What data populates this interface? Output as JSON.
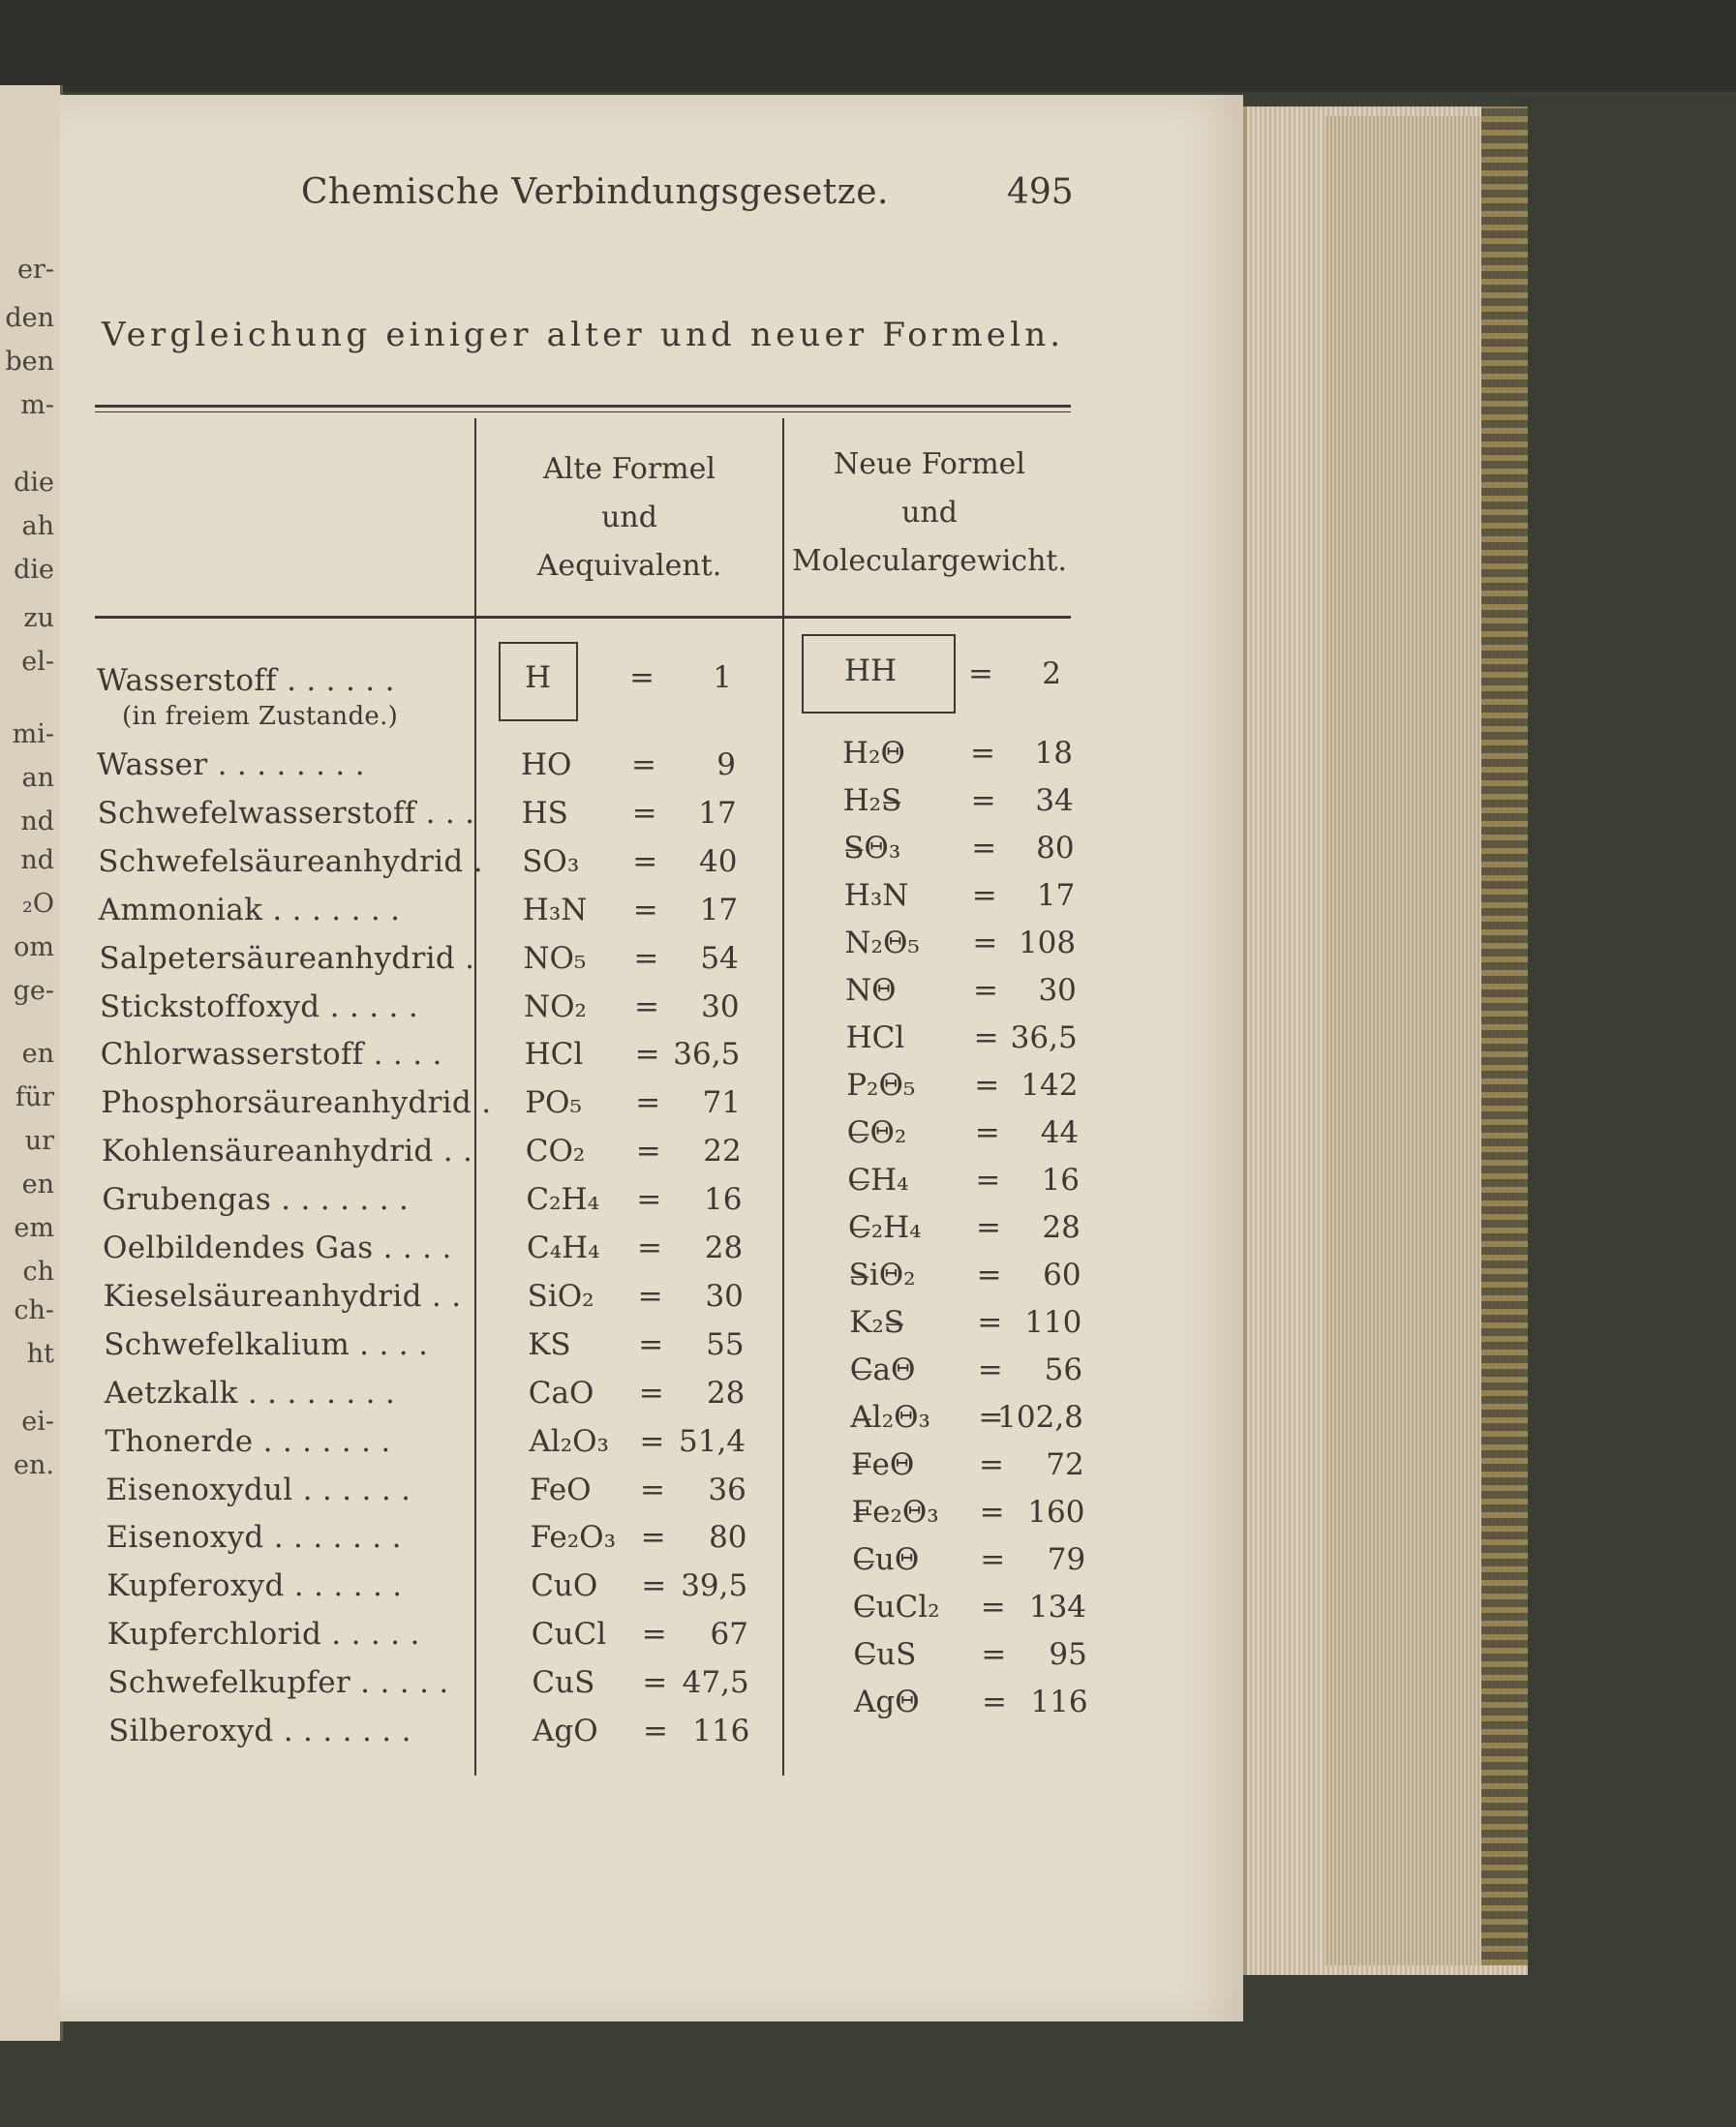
{
  "left_page_fragments": [
    "er-",
    "den",
    "ben",
    "m-",
    "die",
    "ah",
    "die",
    "zu",
    "el-",
    "mi-",
    "an",
    "nd",
    "nd",
    "₂O",
    "om",
    "ge-",
    "en",
    "für",
    "ur",
    "en",
    "em",
    "ch",
    "ch-",
    "ht",
    "ei-",
    "en."
  ],
  "running_head": "Chemische Verbindungsgesetze.",
  "page_number": "495",
  "title": "Vergleichung einiger alter und neuer Formeln.",
  "table": {
    "headers": {
      "old": [
        "Alte Formel",
        "und",
        "Aequivalent."
      ],
      "new": [
        "Neue Formel",
        "und",
        "Moleculargewicht."
      ]
    },
    "first_row": {
      "name": "Wasserstoff . . . . . .",
      "note": "(in freiem Zustande.)",
      "old_formula": "H",
      "eq": "=",
      "old_value": "1",
      "new_formula": "HH",
      "new_value": "2"
    },
    "rows": [
      {
        "name": "Wasser . . . . . . . .",
        "old_formula": "HO",
        "old_value": "9",
        "new_formula": "H₂Θ",
        "new_value": "18"
      },
      {
        "name": "Schwefelwasserstoff . . .",
        "old_formula": "HS",
        "old_value": "17",
        "new_formula": "H₂S̶",
        "new_value": "34"
      },
      {
        "name": "Schwefelsäureanhydrid .",
        "old_formula": "SO₃",
        "old_value": "40",
        "new_formula": "S̶Θ₃",
        "new_value": "80"
      },
      {
        "name": "Ammoniak . . . . . . .",
        "old_formula": "H₃N",
        "old_value": "17",
        "new_formula": "H₃N",
        "new_value": "17"
      },
      {
        "name": "Salpetersäureanhydrid .",
        "old_formula": "NO₅",
        "old_value": "54",
        "new_formula": "N₂Θ₅",
        "new_value": "108"
      },
      {
        "name": "Stickstoffoxyd . . . . .",
        "old_formula": "NO₂",
        "old_value": "30",
        "new_formula": "NΘ",
        "new_value": "30"
      },
      {
        "name": "Chlorwasserstoff . . . .",
        "old_formula": "HCl",
        "old_value": "36,5",
        "new_formula": "HCl",
        "new_value": "36,5"
      },
      {
        "name": "Phosphorsäureanhydrid .",
        "old_formula": "PO₅",
        "old_value": "71",
        "new_formula": "P₂Θ₅",
        "new_value": "142"
      },
      {
        "name": "Kohlensäureanhydrid . .",
        "old_formula": "CO₂",
        "old_value": "22",
        "new_formula": "C̶Θ₂",
        "new_value": "44"
      },
      {
        "name": "Grubengas . . . . . . .",
        "old_formula": "C₂H₄",
        "old_value": "16",
        "new_formula": "C̶H₄",
        "new_value": "16"
      },
      {
        "name": "Oelbildendes Gas . . . .",
        "old_formula": "C₄H₄",
        "old_value": "28",
        "new_formula": "C̶₂H₄",
        "new_value": "28"
      },
      {
        "name": "Kieselsäureanhydrid . .",
        "old_formula": "SiO₂",
        "old_value": "30",
        "new_formula": "S̶iΘ₂",
        "new_value": "60"
      },
      {
        "name": "Schwefelkalium . . . .",
        "old_formula": "KS",
        "old_value": "55",
        "new_formula": "K₂S̶",
        "new_value": "110"
      },
      {
        "name": "Aetzkalk . . . . . . . .",
        "old_formula": "CaO",
        "old_value": "28",
        "new_formula": "C̶aΘ",
        "new_value": "56"
      },
      {
        "name": "Thonerde . . . . . . .",
        "old_formula": "Al₂O₃",
        "old_value": "51,4",
        "new_formula": "A̶l₂Θ₃",
        "new_value": "102,8"
      },
      {
        "name": "Eisenoxydul . . . . . .",
        "old_formula": "FeO",
        "old_value": "36",
        "new_formula": "F̶eΘ",
        "new_value": "72"
      },
      {
        "name": "Eisenoxyd . . . . . . .",
        "old_formula": "Fe₂O₃",
        "old_value": "80",
        "new_formula": "F̶e₂Θ₃",
        "new_value": "160"
      },
      {
        "name": "Kupferoxyd . . . . . .",
        "old_formula": "CuO",
        "old_value": "39,5",
        "new_formula": "C̶uΘ",
        "new_value": "79"
      },
      {
        "name": "Kupferchlorid . . . . .",
        "old_formula": "CuCl",
        "old_value": "67",
        "new_formula": "C̶uCl₂",
        "new_value": "134"
      },
      {
        "name": "Schwefelkupfer . . . . .",
        "old_formula": "CuS",
        "old_value": "47,5",
        "new_formula": "C̶uS",
        "new_value": "95"
      },
      {
        "name": "Silberoxyd . . . . . . .",
        "old_formula": "AgO",
        "old_value": "116",
        "new_formula": "AgΘ",
        "new_value": "116"
      }
    ]
  }
}
